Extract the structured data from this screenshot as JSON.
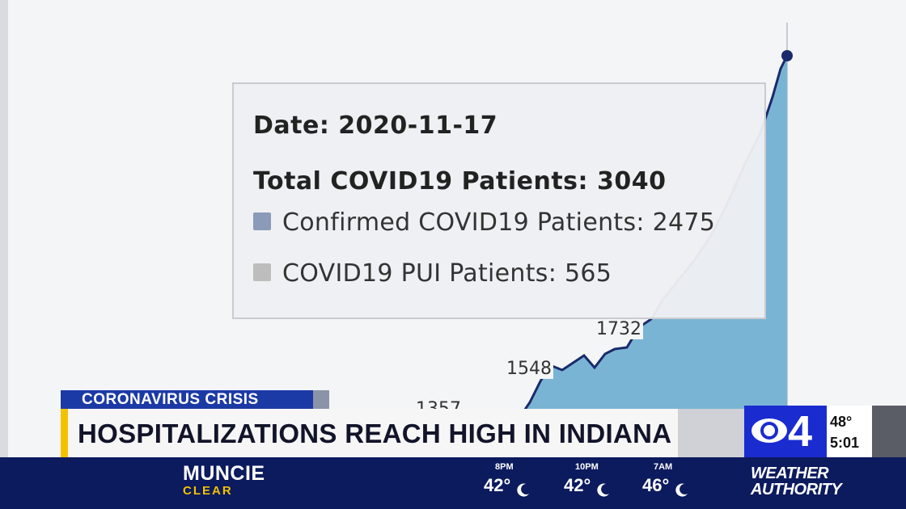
{
  "tooltip": {
    "date": "Date: 2020-11-17",
    "total": "Total COVID19 Patients: 3040",
    "items": [
      {
        "label": "Confirmed COVID19 Patients: 2475",
        "color": "#8a9ab8"
      },
      {
        "label": "COVID19 PUI Patients: 565",
        "color": "#bdbdbd"
      }
    ]
  },
  "point_labels": [
    "1548",
    "1732",
    "1357"
  ],
  "lower_third": {
    "kicker": "CORONAVIRUS CRISIS",
    "headline": "HOSPITALIZATIONS REACH HIGH IN INDIANA",
    "station_number": "4",
    "current_temp": "48°",
    "current_time": "5:01"
  },
  "weather": {
    "city": "MUNCIE",
    "condition": "CLEAR",
    "forecast": [
      {
        "time": "8PM",
        "temp": "42°"
      },
      {
        "time": "10PM",
        "temp": "42°"
      },
      {
        "time": "7AM",
        "temp": "46°"
      }
    ],
    "brand_line1": "WEATHER",
    "brand_line2": "AUTHORITY"
  },
  "colors": {
    "area_fill": "#7ab4d4",
    "line": "#1a2a6c",
    "kicker_bg": "#1c3aa6",
    "accent_yellow": "#f2c200",
    "bar_navy": "#0c1a5e",
    "station_blue": "#1a2bd0"
  }
}
